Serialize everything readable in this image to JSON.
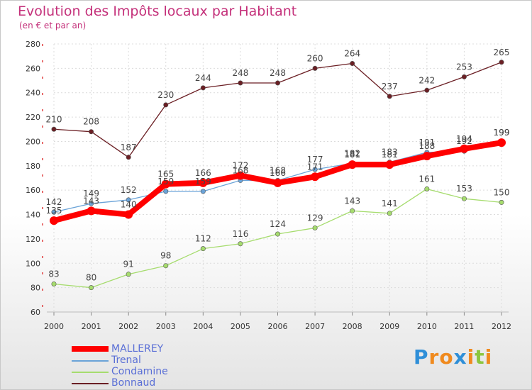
{
  "chart_data": {
    "type": "line",
    "title": "Evolution des Impôts locaux par Habitant",
    "subtitle": "(en € et par an)",
    "x": [
      "2000",
      "2001",
      "2002",
      "2003",
      "2004",
      "2005",
      "2006",
      "2007",
      "2008",
      "2009",
      "2010",
      "2011",
      "2012"
    ],
    "ylim": [
      60,
      280
    ],
    "yticks": [
      60,
      80,
      100,
      120,
      140,
      160,
      180,
      200,
      220,
      240,
      260,
      280
    ],
    "grid": true,
    "legend_position": "bottom-left",
    "series": [
      {
        "name": "MALLEREY",
        "color": "#ff0000",
        "values": [
          135,
          143,
          140,
          165,
          166,
          172,
          166,
          171,
          181,
          181,
          188,
          194,
          199
        ]
      },
      {
        "name": "Trenal",
        "color": "#6aa3d8",
        "values": [
          142,
          149,
          152,
          159,
          159,
          168,
          168,
          177,
          182,
          183,
          191,
          192,
          199
        ]
      },
      {
        "name": "Condamine",
        "color": "#a6dc6e",
        "values": [
          83,
          80,
          91,
          98,
          112,
          116,
          124,
          129,
          143,
          141,
          161,
          153,
          150
        ]
      },
      {
        "name": "Bonnaud",
        "color": "#6b1f24",
        "values": [
          210,
          208,
          187,
          230,
          244,
          248,
          248,
          260,
          264,
          237,
          242,
          253,
          265
        ]
      }
    ]
  },
  "logo": {
    "letters": [
      "P",
      "r",
      "o",
      "x",
      "i",
      "t",
      "i"
    ],
    "colors": [
      "#2f8fd8",
      "#f08a1e",
      "#f08a1e",
      "#2f8fd8",
      "#f08a1e",
      "#8cc63f",
      "#f08a1e"
    ]
  }
}
